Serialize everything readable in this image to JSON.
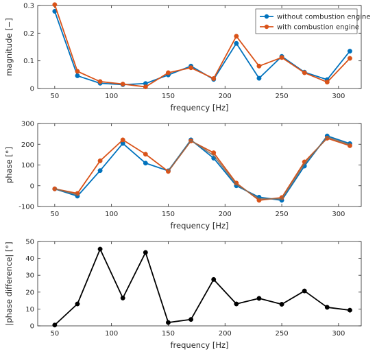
{
  "colors": {
    "without": "#0072BD",
    "with": "#D95319",
    "difference": "#000000",
    "axes": "#262626",
    "overlap": "#7E6B5A"
  },
  "chart_data": [
    {
      "type": "line",
      "title": "",
      "xlabel": "frequency [Hz]",
      "ylabel": "magnitude [−]",
      "xlim": [
        35,
        320
      ],
      "ylim": [
        0,
        0.3
      ],
      "xticks": [
        50,
        100,
        150,
        200,
        250,
        300
      ],
      "yticks": [
        0,
        0.1,
        0.2,
        0.3
      ],
      "ytick_labels": [
        "0",
        "0.1",
        "0.2",
        "0.3"
      ],
      "grid": false,
      "legend_position": "top-right",
      "x": [
        50,
        70,
        90,
        110,
        130,
        150,
        170,
        190,
        210,
        230,
        250,
        270,
        290,
        310
      ],
      "series": [
        {
          "name": "without combustion engine",
          "color_key": "without",
          "values": [
            0.279,
            0.046,
            0.019,
            0.014,
            0.018,
            0.049,
            0.081,
            0.033,
            0.163,
            0.037,
            0.116,
            0.059,
            0.032,
            0.135
          ]
        },
        {
          "name": "with combustion engine",
          "color_key": "with",
          "values": [
            0.303,
            0.062,
            0.025,
            0.016,
            0.006,
            0.057,
            0.075,
            0.036,
            0.189,
            0.081,
            0.112,
            0.057,
            0.023,
            0.109
          ]
        }
      ]
    },
    {
      "type": "line",
      "title": "",
      "xlabel": "frequency [Hz]",
      "ylabel": "phase [°]",
      "xlim": [
        35,
        320
      ],
      "ylim": [
        -100,
        300
      ],
      "xticks": [
        50,
        100,
        150,
        200,
        250,
        300
      ],
      "yticks": [
        -100,
        0,
        100,
        200,
        300
      ],
      "ytick_labels": [
        "-100",
        "0",
        "100",
        "200",
        "300"
      ],
      "grid": false,
      "x": [
        50,
        70,
        90,
        110,
        130,
        150,
        170,
        190,
        210,
        230,
        250,
        270,
        290,
        310
      ],
      "series": [
        {
          "name": "",
          "color_key": "without",
          "values": [
            -15,
            -50,
            73,
            204,
            109,
            72,
            221,
            133,
            0,
            -55,
            -70,
            95,
            240,
            203
          ]
        },
        {
          "name": "",
          "color_key": "with",
          "values": [
            -15,
            -37,
            120,
            221,
            152,
            69,
            216,
            159,
            13,
            -70,
            -57,
            115,
            229,
            193
          ]
        }
      ]
    },
    {
      "type": "line",
      "title": "",
      "xlabel": "frequency [Hz]",
      "ylabel": "|phase difference| [°]",
      "xlim": [
        35,
        320
      ],
      "ylim": [
        0,
        50
      ],
      "xticks": [
        50,
        100,
        150,
        200,
        250,
        300
      ],
      "yticks": [
        0,
        10,
        20,
        30,
        40,
        50
      ],
      "ytick_labels": [
        "0",
        "10",
        "20",
        "30",
        "40",
        "50"
      ],
      "grid": false,
      "x": [
        50,
        70,
        90,
        110,
        130,
        150,
        170,
        190,
        210,
        230,
        250,
        270,
        290,
        310
      ],
      "series": [
        {
          "name": "",
          "color_key": "difference",
          "values": [
            0.5,
            13,
            45.5,
            16.5,
            43.5,
            2,
            3.8,
            27.5,
            13,
            16.3,
            12.8,
            20.7,
            11,
            9.3
          ]
        }
      ]
    }
  ]
}
